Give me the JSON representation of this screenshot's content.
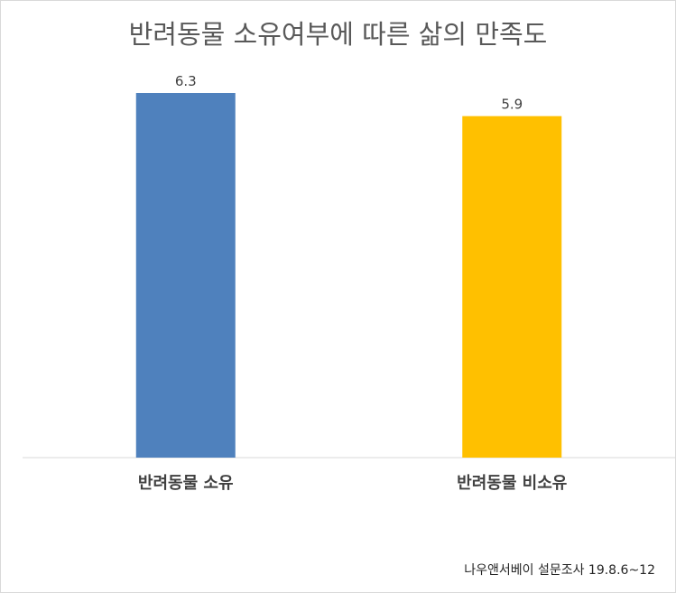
{
  "chart_data": {
    "type": "bar",
    "title": "반려동물 소유여부에 따른 삶의 만족도",
    "categories": [
      "반려동물 소유",
      "반려동물 비소유"
    ],
    "values": [
      6.3,
      5.9
    ],
    "value_labels": [
      "6.3",
      "5.9"
    ],
    "colors": [
      "#4F81BD",
      "#FFC000"
    ],
    "xlabel": "",
    "ylabel": "",
    "ylim": [
      0,
      6.3
    ],
    "grid": false,
    "legend": "none",
    "source": "나우앤서베이 설문조사 19.8.6~12"
  }
}
